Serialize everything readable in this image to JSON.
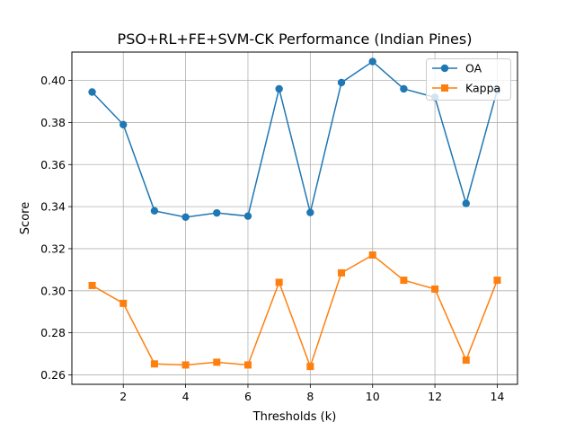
{
  "chart_data": {
    "type": "line",
    "title": "PSO+RL+FE+SVM-CK Performance (Indian Pines)",
    "xlabel": "Thresholds (k)",
    "ylabel": "Score",
    "x": [
      1,
      2,
      3,
      4,
      5,
      6,
      7,
      8,
      9,
      10,
      11,
      12,
      13,
      14
    ],
    "xlim": [
      0.35,
      14.65
    ],
    "ylim": [
      0.2555,
      0.4135
    ],
    "xticks": [
      2,
      4,
      6,
      8,
      10,
      12,
      14
    ],
    "yticks": [
      0.26,
      0.28,
      0.3,
      0.32,
      0.34,
      0.36,
      0.38,
      0.4
    ],
    "ytick_labels": [
      "0.26",
      "0.28",
      "0.30",
      "0.32",
      "0.34",
      "0.36",
      "0.38",
      "0.40"
    ],
    "grid": true,
    "legend_position": "top-right",
    "series": [
      {
        "name": "OA",
        "color": "#1f77b4",
        "marker": "circle",
        "values": [
          0.3945,
          0.379,
          0.338,
          0.335,
          0.337,
          0.3355,
          0.396,
          0.3372,
          0.399,
          0.409,
          0.396,
          0.392,
          0.3415,
          0.3955
        ]
      },
      {
        "name": "Kappa",
        "color": "#ff7f0e",
        "marker": "square",
        "values": [
          0.3025,
          0.294,
          0.2652,
          0.2647,
          0.266,
          0.2647,
          0.304,
          0.264,
          0.3085,
          0.317,
          0.305,
          0.3008,
          0.267,
          0.305
        ]
      }
    ]
  }
}
